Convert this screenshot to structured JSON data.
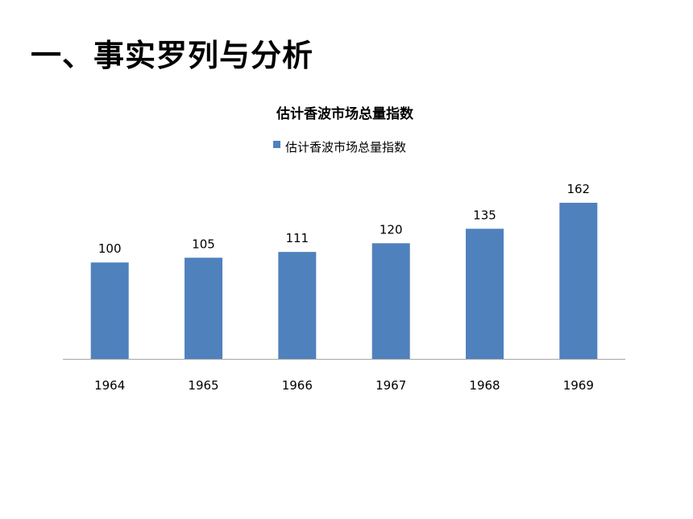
{
  "slide": {
    "title": "一、事实罗列与分析"
  },
  "colors": {
    "bar": "#4f81bd",
    "axis": "#a6a6a6",
    "text": "#000000"
  },
  "chart_data": {
    "type": "bar",
    "title": "估计香波市场总量指数",
    "categories": [
      "1964",
      "1965",
      "1966",
      "1967",
      "1968",
      "1969"
    ],
    "series": [
      {
        "name": "估计香波市场总量指数",
        "values": [
          100,
          105,
          111,
          120,
          135,
          162
        ]
      }
    ],
    "ylim": [
      0,
      162
    ],
    "grid": false,
    "legend": "top",
    "data_labels": true
  }
}
